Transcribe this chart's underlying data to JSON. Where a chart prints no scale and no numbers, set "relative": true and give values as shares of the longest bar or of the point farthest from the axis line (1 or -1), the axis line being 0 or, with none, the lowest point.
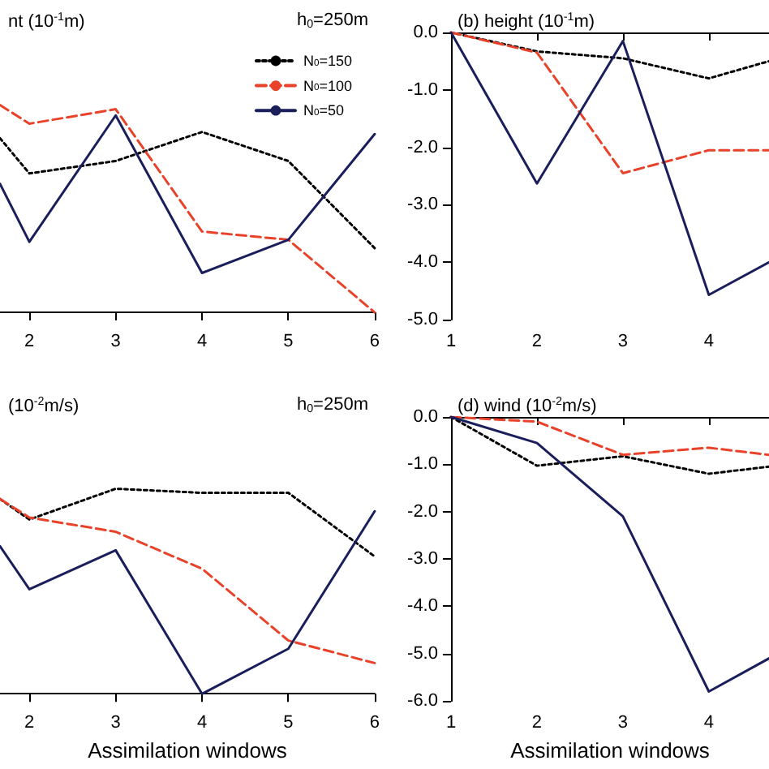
{
  "chart_data": [
    {
      "type": "line",
      "title": "nt (10$^{-1}$m)",
      "subtitle": "h$_{0}$=250m",
      "relative": true,
      "x": [
        1.66,
        2,
        3,
        4,
        5,
        6
      ],
      "xlim": [
        1.66,
        6
      ],
      "xticks": [
        2,
        3,
        4,
        5,
        6
      ],
      "legend": "top right",
      "marker": "none",
      "series": [
        {
          "name": "N$_{0}$=150",
          "color": "#000000",
          "line_style": "dotted",
          "values": [
            0.84,
            0.67,
            0.73,
            0.87,
            0.73,
            0.31
          ]
        },
        {
          "name": "N$_{0}$=100",
          "color": "#e8432a",
          "line_style": "dashed",
          "values": [
            1,
            0.91,
            0.98,
            0.39,
            0.35,
            0
          ]
        },
        {
          "name": "N$_{0}$=50",
          "color": "#1a1f5c",
          "line_style": "solid",
          "values": [
            0.62,
            0.34,
            0.95,
            0.19,
            0.35,
            0.86
          ]
        }
      ]
    },
    {
      "type": "line",
      "title": "(b) height (10$^{-1}$m)",
      "x": [
        1,
        2,
        3,
        4,
        4.7
      ],
      "xlim": [
        1,
        4.7
      ],
      "xticks": [
        1,
        2,
        3,
        4
      ],
      "ylim": [
        -5,
        0
      ],
      "yticks": [
        {
          "value": -5,
          "label": "-5.0"
        },
        {
          "value": -4,
          "label": "-4.0"
        },
        {
          "value": -3,
          "label": "-3.0"
        },
        {
          "value": -2,
          "label": "-2.0"
        },
        {
          "value": -1,
          "label": "-1.0"
        },
        {
          "value": 0,
          "label": "0.0"
        }
      ],
      "marker": "none",
      "series": [
        {
          "color": "#000000",
          "line_style": "dotted",
          "values": [
            0,
            -0.33,
            -0.45,
            -0.8,
            -0.5
          ]
        },
        {
          "color": "#e8432a",
          "line_style": "dashed",
          "values": [
            0,
            -0.35,
            -2.45,
            -2.05,
            -2.05
          ]
        },
        {
          "color": "#1a1f5c",
          "line_style": "solid",
          "values": [
            0,
            -2.63,
            -0.15,
            -4.57,
            -4.0
          ]
        }
      ]
    },
    {
      "type": "line",
      "title": "(10$^{-2}$m/s)",
      "subtitle": "h$_{0}$=250m",
      "xlabel": "Assimilation windows",
      "relative": true,
      "x": [
        1.66,
        2,
        3,
        4,
        5,
        6
      ],
      "xlim": [
        1.66,
        6
      ],
      "xticks": [
        2,
        3,
        4,
        5,
        6
      ],
      "marker": "none",
      "series": [
        {
          "color": "#000000",
          "line_style": "dotted",
          "values": [
            0.95,
            0.85,
            1,
            0.98,
            0.98,
            0.67
          ]
        },
        {
          "color": "#e8432a",
          "line_style": "dashed",
          "values": [
            0.95,
            0.86,
            0.79,
            0.61,
            0.26,
            0.15
          ]
        },
        {
          "color": "#1a1f5c",
          "line_style": "solid",
          "values": [
            0.72,
            0.51,
            0.7,
            0,
            0.22,
            0.89
          ]
        }
      ]
    },
    {
      "type": "line",
      "title": "(d) wind (10$^{-2}$m/s)",
      "xlabel": "Assimilation windows",
      "x": [
        1,
        2,
        3,
        4,
        4.7
      ],
      "xlim": [
        1,
        4.7
      ],
      "xticks": [
        1,
        2,
        3,
        4
      ],
      "ylim": [
        -6,
        0
      ],
      "yticks": [
        {
          "value": -6,
          "label": "-6.0"
        },
        {
          "value": -5,
          "label": "-5.0"
        },
        {
          "value": -4,
          "label": "-4.0"
        },
        {
          "value": -3,
          "label": "-3.0"
        },
        {
          "value": -2,
          "label": "-2.0"
        },
        {
          "value": -1,
          "label": "-1.0"
        },
        {
          "value": 0,
          "label": "0.0"
        }
      ],
      "marker": "none",
      "series": [
        {
          "color": "#000000",
          "line_style": "dotted",
          "values": [
            0,
            -1.03,
            -0.83,
            -1.2,
            -1.05
          ]
        },
        {
          "color": "#e8432a",
          "line_style": "dashed",
          "values": [
            0,
            -0.1,
            -0.8,
            -0.65,
            -0.8
          ]
        },
        {
          "color": "#1a1f5c",
          "line_style": "solid",
          "values": [
            0,
            -0.55,
            -2.1,
            -5.8,
            -5.1
          ]
        }
      ]
    }
  ]
}
